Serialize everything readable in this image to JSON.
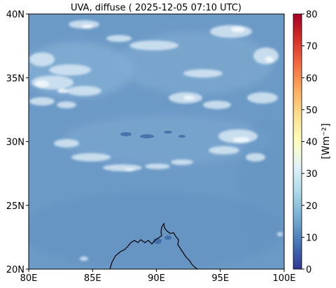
{
  "title": "UVA, diffuse ( 2025-12-05 07:10 UTC)",
  "map": {
    "lon_range": [
      80,
      100
    ],
    "lat_range": [
      20,
      40
    ],
    "x_ticks": [
      {
        "value": 80,
        "label": "80E"
      },
      {
        "value": 85,
        "label": "85E"
      },
      {
        "value": 90,
        "label": "90E"
      },
      {
        "value": 95,
        "label": "95E"
      },
      {
        "value": 100,
        "label": "100E"
      }
    ],
    "y_ticks": [
      {
        "value": 20,
        "label": "20N"
      },
      {
        "value": 25,
        "label": "25N"
      },
      {
        "value": 30,
        "label": "30N"
      },
      {
        "value": 35,
        "label": "35N"
      },
      {
        "value": 40,
        "label": "40N"
      }
    ],
    "background_color": "#6c9ac6"
  },
  "colorbar": {
    "label": "[Wm⁻²]",
    "range": [
      0,
      80
    ],
    "ticks": [
      {
        "value": 0,
        "label": "0"
      },
      {
        "value": 10,
        "label": "10"
      },
      {
        "value": 20,
        "label": "20"
      },
      {
        "value": 30,
        "label": "30"
      },
      {
        "value": 40,
        "label": "40"
      },
      {
        "value": 50,
        "label": "50"
      },
      {
        "value": 60,
        "label": "60"
      },
      {
        "value": 70,
        "label": "70"
      },
      {
        "value": 80,
        "label": "80"
      }
    ],
    "colormap": [
      "#313695",
      "#4575b4",
      "#74add1",
      "#abd9e9",
      "#e0f3f8",
      "#ffffbf",
      "#fee090",
      "#fdae61",
      "#f46d43",
      "#d73027",
      "#a50026"
    ]
  }
}
